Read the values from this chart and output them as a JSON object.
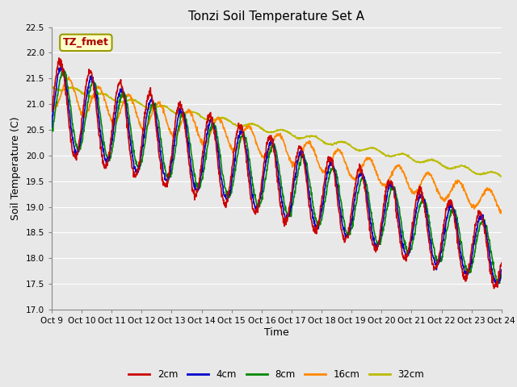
{
  "title": "Tonzi Soil Temperature Set A",
  "xlabel": "Time",
  "ylabel": "Soil Temperature (C)",
  "ylim": [
    17.0,
    22.5
  ],
  "yticks": [
    17.0,
    17.5,
    18.0,
    18.5,
    19.0,
    19.5,
    20.0,
    20.5,
    21.0,
    21.5,
    22.0,
    22.5
  ],
  "xtick_labels": [
    "Oct 9",
    "Oct 10",
    "Oct 11",
    "Oct 12",
    "Oct 13",
    "Oct 14",
    "Oct 15",
    "Oct 16",
    "Oct 17",
    "Oct 18",
    "Oct 19",
    "Oct 20",
    "Oct 21",
    "Oct 22",
    "Oct 23",
    "Oct 24"
  ],
  "colors": {
    "2cm": "#cc0000",
    "4cm": "#0000cc",
    "8cm": "#008800",
    "16cm": "#ff8800",
    "32cm": "#bbbb00"
  },
  "annotation_text": "TZ_fmet",
  "annotation_box_color": "#ffffcc",
  "annotation_text_color": "#aa0000",
  "annotation_border_color": "#999900",
  "fig_bg_color": "#e8e8e8",
  "plot_bg_color": "#e8e8e8",
  "grid_color": "#ffffff",
  "linewidth": 1.2,
  "n_days": 15,
  "pts_per_day": 96
}
